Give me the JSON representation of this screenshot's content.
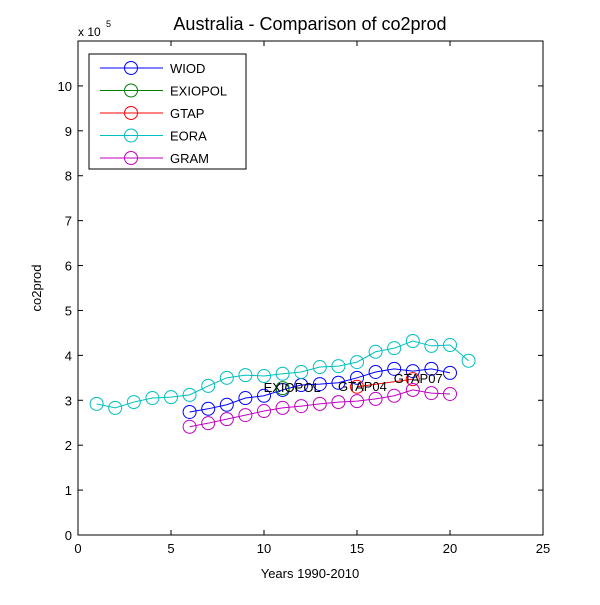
{
  "chart_data": {
    "type": "line",
    "title": "Australia - Comparison of co2prod",
    "xlabel": "Years 1990-2010",
    "ylabel": "co2prod",
    "y_multiplier_label": "x 10",
    "y_multiplier_exp": "5",
    "xlim": [
      0,
      25
    ],
    "ylim": [
      0,
      11
    ],
    "xticks": [
      0,
      5,
      10,
      15,
      20,
      25
    ],
    "yticks": [
      0,
      1,
      2,
      3,
      4,
      5,
      6,
      7,
      8,
      9,
      10
    ],
    "grid": false,
    "legend_position": "top-left",
    "series": [
      {
        "name": "WIOD",
        "color": "#0000ff",
        "x": [
          6,
          7,
          8,
          9,
          10,
          11,
          12,
          13,
          14,
          15,
          16,
          17,
          18,
          19,
          20
        ],
        "y": [
          2.74,
          2.81,
          2.9,
          3.05,
          3.1,
          3.23,
          3.34,
          3.36,
          3.39,
          3.5,
          3.63,
          3.7,
          3.65,
          3.7,
          3.61
        ]
      },
      {
        "name": "EXIOPOL",
        "color": "#008000",
        "x": [
          11
        ],
        "y": [
          3.27
        ]
      },
      {
        "name": "GTAP",
        "color": "#ff0000",
        "x": [
          15,
          18
        ],
        "y": [
          3.3,
          3.47
        ]
      },
      {
        "name": "EORA",
        "color": "#00bfbf",
        "x": [
          1,
          2,
          3,
          4,
          5,
          6,
          7,
          8,
          9,
          10,
          11,
          12,
          13,
          14,
          15,
          16,
          17,
          18,
          19,
          20,
          21
        ],
        "y": [
          2.92,
          2.83,
          2.96,
          3.05,
          3.07,
          3.12,
          3.32,
          3.5,
          3.56,
          3.54,
          3.59,
          3.63,
          3.74,
          3.76,
          3.85,
          4.08,
          4.16,
          4.32,
          4.21,
          4.23,
          3.88
        ]
      },
      {
        "name": "GRAM",
        "color": "#bf00bf",
        "x": [
          6,
          7,
          8,
          9,
          10,
          11,
          12,
          13,
          14,
          15,
          16,
          17,
          18,
          19,
          20
        ],
        "y": [
          2.41,
          2.49,
          2.58,
          2.67,
          2.76,
          2.83,
          2.87,
          2.92,
          2.96,
          2.98,
          3.03,
          3.1,
          3.23,
          3.16,
          3.14
        ]
      }
    ],
    "annotations": [
      {
        "text": "EXIOPOL",
        "x": 11,
        "y": 3.27
      },
      {
        "text": "GTAP04",
        "x": 15,
        "y": 3.3
      },
      {
        "text": "GTAP07",
        "x": 18,
        "y": 3.47
      }
    ]
  }
}
